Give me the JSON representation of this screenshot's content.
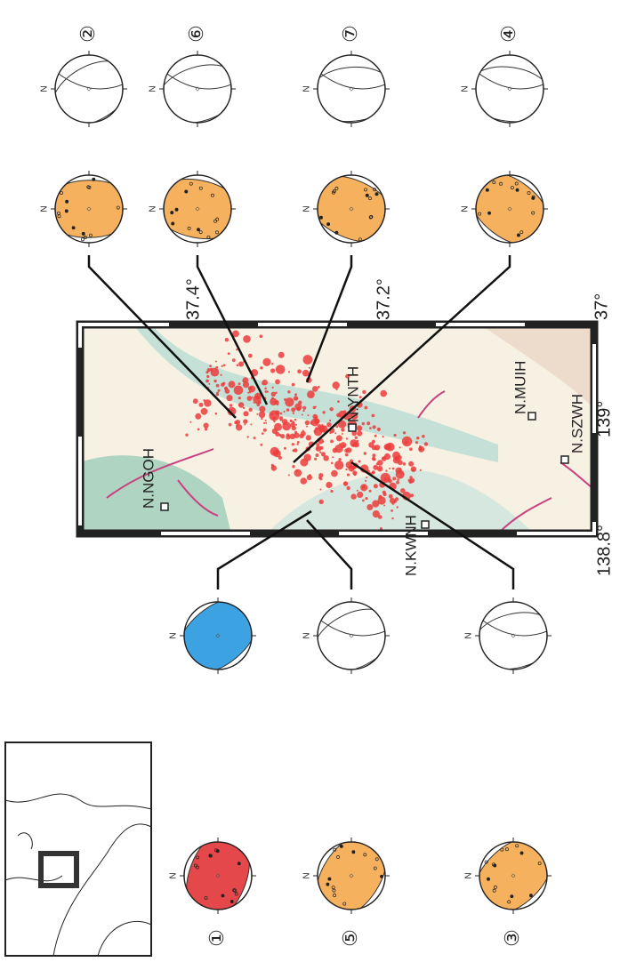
{
  "mechanisms": [
    {
      "label": "①",
      "color": "#e5484b",
      "color2": "#3da2e2"
    },
    {
      "label": "②",
      "color": "#f6b15f",
      "color2": "#ffffff"
    },
    {
      "label": "③",
      "color": "#f6b15f",
      "color2": "#ffffff"
    },
    {
      "label": "④",
      "color": "#f6b15f",
      "color2": "#ffffff"
    },
    {
      "label": "⑤",
      "color": "#f6b15f",
      "color2": "#ffffff"
    },
    {
      "label": "⑥",
      "color": "#f6b15f",
      "color2": "#ffffff"
    },
    {
      "label": "⑦",
      "color": "#f6b15f",
      "color2": "#ffffff"
    }
  ],
  "north_label": "N",
  "stations": [
    "N.NGOH",
    "N.KWNH",
    "N.SZWH",
    "N.MUIH",
    "N.YNTH"
  ],
  "lat_labels": [
    "37.4°",
    "37.2°",
    "37°"
  ],
  "lon_labels": [
    "138.8°",
    "139°"
  ]
}
